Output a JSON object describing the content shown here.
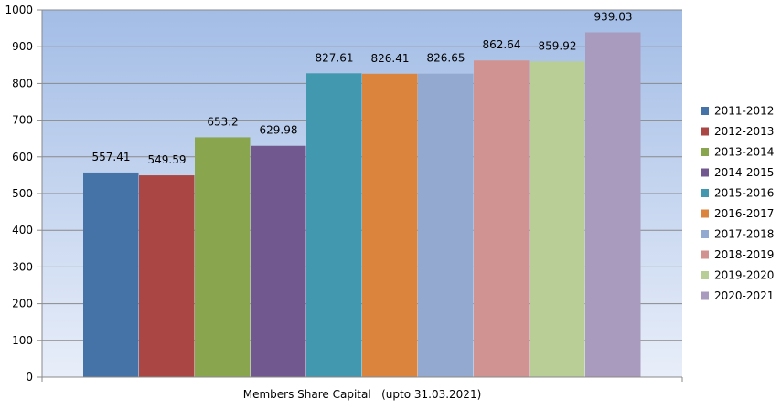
{
  "chart_data": {
    "type": "bar",
    "xlabel": "Members Share Capital   (upto 31.03.2021)",
    "ylabel": "",
    "ylim": [
      0,
      1000
    ],
    "yticks": [
      0,
      100,
      200,
      300,
      400,
      500,
      600,
      700,
      800,
      900,
      1000
    ],
    "grid": true,
    "legend_position": "right",
    "background_gradient": [
      "#a3bde6",
      "#e8eef9"
    ],
    "series": [
      {
        "name": "2011-2012",
        "value": 557.41,
        "label": "557.41",
        "color": "#4572a7"
      },
      {
        "name": "2012-2013",
        "value": 549.59,
        "label": "549.59",
        "color": "#aa4643"
      },
      {
        "name": "2013-2014",
        "value": 653.2,
        "label": "653.2",
        "color": "#89a54e"
      },
      {
        "name": "2014-2015",
        "value": 629.98,
        "label": "629.98",
        "color": "#71588f"
      },
      {
        "name": "2015-2016",
        "value": 827.61,
        "label": "827.61",
        "color": "#4198af"
      },
      {
        "name": "2016-2017",
        "value": 826.41,
        "label": "826.41",
        "color": "#db843d"
      },
      {
        "name": "2017-2018",
        "value": 826.65,
        "label": "826.65",
        "color": "#93a9cf"
      },
      {
        "name": "2018-2019",
        "value": 862.64,
        "label": "862.64",
        "color": "#d19392"
      },
      {
        "name": "2019-2020",
        "value": 859.92,
        "label": "859.92",
        "color": "#b9cd96"
      },
      {
        "name": "2020-2021",
        "value": 939.03,
        "label": "939.03",
        "color": "#a99bbd"
      }
    ]
  }
}
